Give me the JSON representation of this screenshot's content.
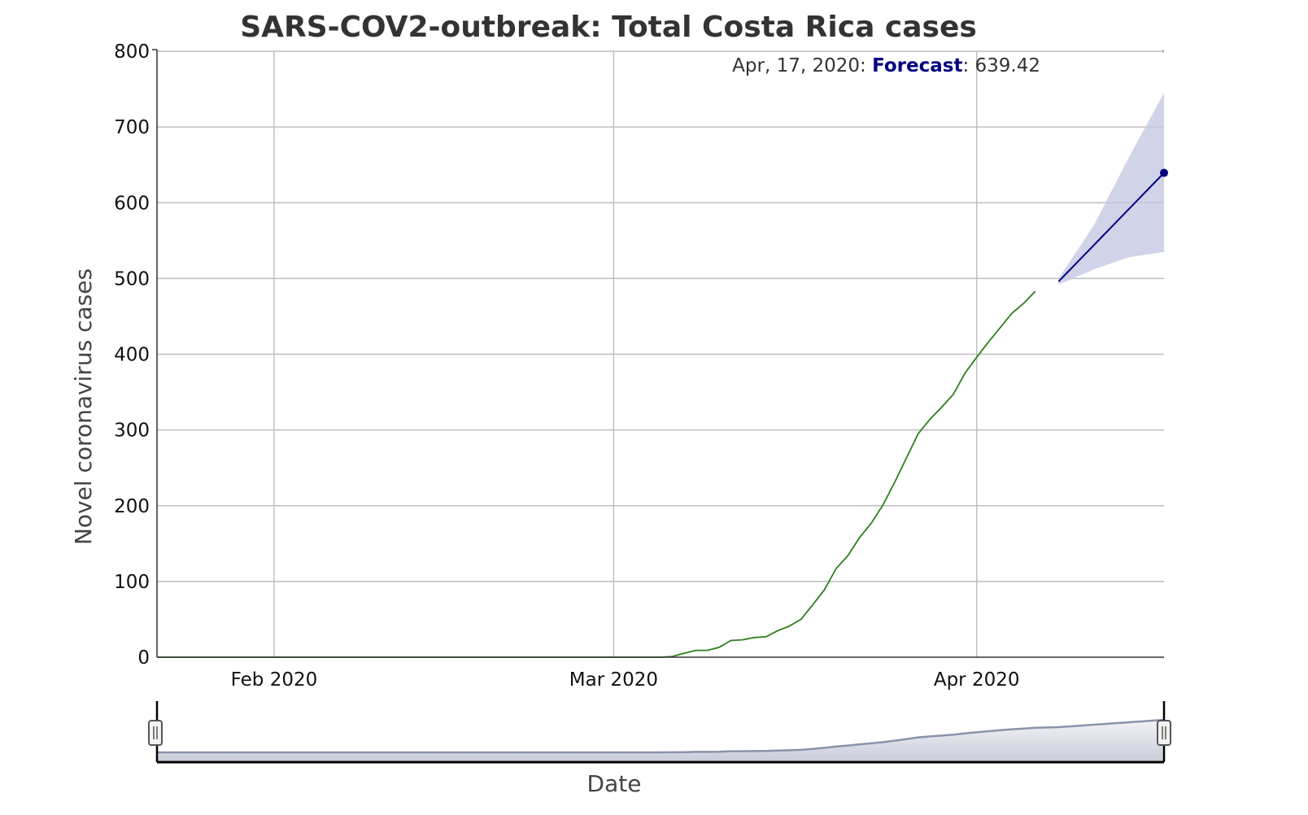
{
  "chart_data": {
    "type": "line",
    "title": "SARS-COV2-outbreak: Total Costa Rica cases",
    "xlabel": "Date",
    "ylabel": "Novel coronavirus cases",
    "ylim": [
      0,
      800
    ],
    "yticks": [
      0,
      100,
      200,
      300,
      400,
      500,
      600,
      700,
      800
    ],
    "xlim": [
      "2020-01-22",
      "2020-04-17"
    ],
    "xticks": [
      {
        "date": "2020-02-01",
        "label": "Feb 2020"
      },
      {
        "date": "2020-03-01",
        "label": "Mar 2020"
      },
      {
        "date": "2020-04-01",
        "label": "Apr 2020"
      }
    ],
    "grid": true,
    "series": [
      {
        "color": "#2e7d1e",
        "points": [
          [
            "2020-01-22",
            0
          ],
          [
            "2020-03-05",
            0
          ],
          [
            "2020-03-06",
            1
          ],
          [
            "2020-03-07",
            5
          ],
          [
            "2020-03-08",
            9
          ],
          [
            "2020-03-09",
            9
          ],
          [
            "2020-03-10",
            13
          ],
          [
            "2020-03-11",
            22
          ],
          [
            "2020-03-12",
            23
          ],
          [
            "2020-03-13",
            26
          ],
          [
            "2020-03-14",
            27
          ],
          [
            "2020-03-15",
            35
          ],
          [
            "2020-03-16",
            41
          ],
          [
            "2020-03-17",
            50
          ],
          [
            "2020-03-18",
            69
          ],
          [
            "2020-03-19",
            89
          ],
          [
            "2020-03-20",
            117
          ],
          [
            "2020-03-21",
            134
          ],
          [
            "2020-03-22",
            158
          ],
          [
            "2020-03-23",
            177
          ],
          [
            "2020-03-24",
            201
          ],
          [
            "2020-03-25",
            231
          ],
          [
            "2020-03-26",
            263
          ],
          [
            "2020-03-27",
            295
          ],
          [
            "2020-03-28",
            314
          ],
          [
            "2020-03-29",
            330
          ],
          [
            "2020-03-30",
            347
          ],
          [
            "2020-03-31",
            375
          ],
          [
            "2020-04-01",
            396
          ],
          [
            "2020-04-02",
            416
          ],
          [
            "2020-04-03",
            435
          ],
          [
            "2020-04-04",
            454
          ],
          [
            "2020-04-05",
            467
          ],
          [
            "2020-04-06",
            483
          ]
        ]
      },
      {
        "name": "Forecast",
        "color": "#000080",
        "points": [
          [
            "2020-04-08",
            496
          ],
          [
            "2020-04-17",
            639.42
          ]
        ],
        "band_color": "#c5c8e3",
        "band_upper": [
          [
            "2020-04-08",
            500
          ],
          [
            "2020-04-11",
            570
          ],
          [
            "2020-04-14",
            660
          ],
          [
            "2020-04-17",
            745
          ]
        ],
        "band_lower": [
          [
            "2020-04-08",
            492
          ],
          [
            "2020-04-11",
            512
          ],
          [
            "2020-04-14",
            528
          ],
          [
            "2020-04-17",
            535
          ]
        ]
      }
    ],
    "tooltip": {
      "date": "Apr, 17, 2020",
      "label": "Forecast",
      "value": "639.42"
    },
    "range_selector": {
      "fill_color": "#c8ccd8",
      "line_color": "#8a93ab"
    }
  }
}
